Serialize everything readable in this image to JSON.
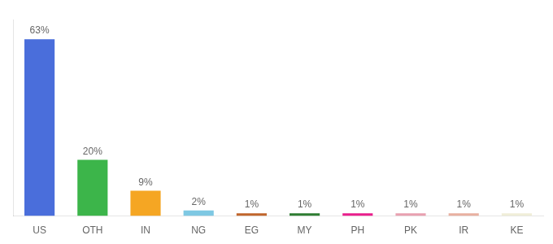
{
  "chart_data": {
    "type": "bar",
    "categories": [
      "US",
      "OTH",
      "IN",
      "NG",
      "EG",
      "MY",
      "PH",
      "PK",
      "IR",
      "KE"
    ],
    "values": [
      63,
      20,
      9,
      2,
      1,
      1,
      1,
      1,
      1,
      1
    ],
    "value_labels": [
      "63%",
      "20%",
      "9%",
      "2%",
      "1%",
      "1%",
      "1%",
      "1%",
      "1%",
      "1%"
    ],
    "colors": [
      "#4a6edb",
      "#3cb54a",
      "#f5a623",
      "#7ec8e3",
      "#c0652b",
      "#2e7d32",
      "#e91e8c",
      "#e8a0b0",
      "#e8b0a0",
      "#f0eed8"
    ],
    "ylim": [
      0,
      70
    ],
    "data_labels": true,
    "tick_labels": "x",
    "grid": false
  }
}
